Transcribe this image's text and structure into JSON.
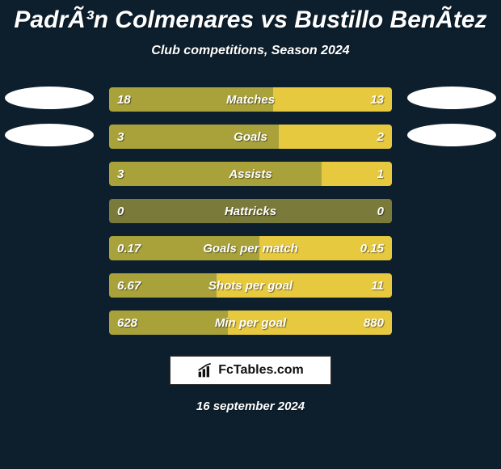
{
  "colors": {
    "background": "#0d1f2d",
    "text": "#ffffff",
    "badge": "#ffffff",
    "brand_bg": "#ffffff",
    "brand_text": "#111111",
    "left_seg": "#a9a23b",
    "right_seg": "#e7c93f",
    "neutral_seg": "#7a7a3a"
  },
  "title": "PadrÃ³n Colmenares vs Bustillo BenÃ­tez",
  "subtitle": "Club competitions, Season 2024",
  "brand": "FcTables.com",
  "date": "16 september 2024",
  "rows": [
    {
      "label": "Matches",
      "left": "18",
      "right": "13",
      "left_pct": 58,
      "right_pct": 42,
      "show_badges": true
    },
    {
      "label": "Goals",
      "left": "3",
      "right": "2",
      "left_pct": 60,
      "right_pct": 40,
      "show_badges": true
    },
    {
      "label": "Assists",
      "left": "3",
      "right": "1",
      "left_pct": 75,
      "right_pct": 25,
      "show_badges": false
    },
    {
      "label": "Hattricks",
      "left": "0",
      "right": "0",
      "left_pct": 50,
      "right_pct": 50,
      "show_badges": false,
      "neutral": true
    },
    {
      "label": "Goals per match",
      "left": "0.17",
      "right": "0.15",
      "left_pct": 53,
      "right_pct": 47,
      "show_badges": false
    },
    {
      "label": "Shots per goal",
      "left": "6.67",
      "right": "11",
      "left_pct": 38,
      "right_pct": 62,
      "show_badges": false
    },
    {
      "label": "Min per goal",
      "left": "628",
      "right": "880",
      "left_pct": 42,
      "right_pct": 58,
      "show_badges": false
    }
  ]
}
